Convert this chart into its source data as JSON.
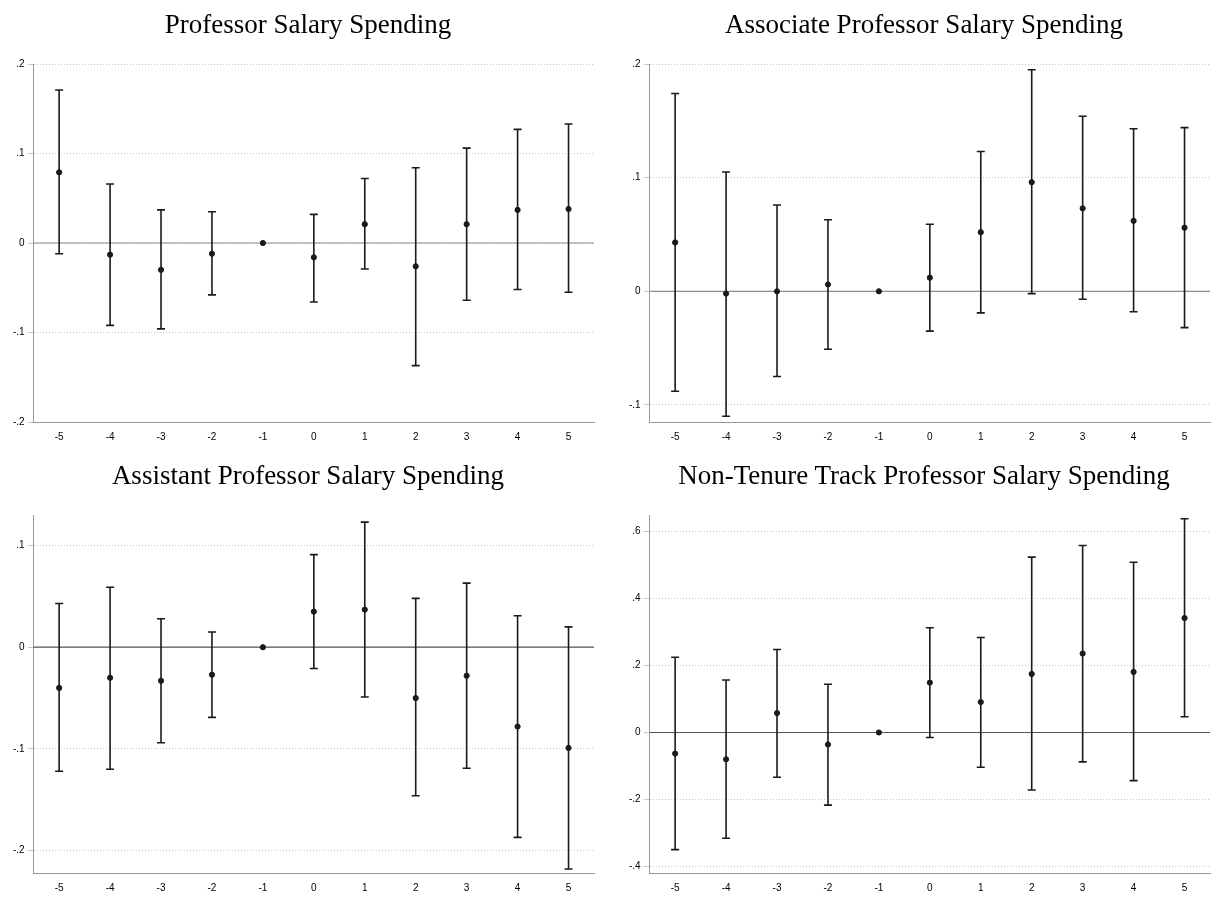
{
  "chart_data": [
    {
      "type": "scatter",
      "title": "Professor Salary Spending",
      "x": [
        -5,
        -4,
        -3,
        -2,
        -1,
        0,
        1,
        2,
        3,
        4,
        5
      ],
      "series": [
        {
          "color": "#1a1a1a",
          "values": [
            0.079,
            -0.013,
            -0.03,
            -0.012,
            0,
            -0.016,
            0.021,
            -0.026,
            0.021,
            0.037,
            0.038
          ],
          "errors": [
            [
              -0.012,
              0.171
            ],
            [
              -0.092,
              0.066
            ],
            [
              -0.096,
              0.037
            ],
            [
              -0.058,
              0.035
            ],
            null,
            [
              -0.066,
              0.032
            ],
            [
              -0.029,
              0.072
            ],
            [
              -0.137,
              0.084
            ],
            [
              -0.064,
              0.106
            ],
            [
              -0.052,
              0.127
            ],
            [
              -0.055,
              0.133
            ]
          ]
        }
      ],
      "xlim": [
        -5.5,
        5.5
      ],
      "xticks": [
        -5,
        -4,
        -3,
        -2,
        -1,
        0,
        1,
        2,
        3,
        4,
        5
      ],
      "ylim": [
        -0.2,
        0.2
      ],
      "yticks": [
        {
          "value": -0.2,
          "label": "-.2"
        },
        {
          "value": -0.1,
          "label": "-.1"
        },
        {
          "value": 0,
          "label": "0"
        },
        {
          "value": 0.1,
          "label": ".1"
        },
        {
          "value": 0.2,
          "label": ".2"
        }
      ],
      "grid": "y",
      "marker": "circle",
      "ref_lines": [
        {
          "axis": "y",
          "value": 0,
          "color": "#8c8c8c"
        }
      ]
    },
    {
      "type": "scatter",
      "title": "Associate Professor Salary Spending",
      "x": [
        -5,
        -4,
        -3,
        -2,
        -1,
        0,
        1,
        2,
        3,
        4,
        5
      ],
      "series": [
        {
          "color": "#1a1a1a",
          "values": [
            0.043,
            -0.002,
            0,
            0.006,
            0,
            0.012,
            0.052,
            0.096,
            0.073,
            0.062,
            0.056
          ],
          "errors": [
            [
              -0.088,
              0.174
            ],
            [
              -0.11,
              0.105
            ],
            [
              -0.075,
              0.076
            ],
            [
              -0.051,
              0.063
            ],
            null,
            [
              -0.035,
              0.059
            ],
            [
              -0.019,
              0.123
            ],
            [
              -0.002,
              0.195
            ],
            [
              -0.007,
              0.154
            ],
            [
              -0.018,
              0.143
            ],
            [
              -0.032,
              0.144
            ]
          ]
        }
      ],
      "xlim": [
        -5.5,
        5.5
      ],
      "xticks": [
        -5,
        -4,
        -3,
        -2,
        -1,
        0,
        1,
        2,
        3,
        4,
        5
      ],
      "ylim": [
        -0.115,
        0.2
      ],
      "yticks": [
        {
          "value": -0.1,
          "label": "-.1"
        },
        {
          "value": 0,
          "label": "0"
        },
        {
          "value": 0.1,
          "label": ".1"
        },
        {
          "value": 0.2,
          "label": ".2"
        }
      ],
      "grid": "y",
      "marker": "circle",
      "ref_lines": [
        {
          "axis": "y",
          "value": 0,
          "color": "#8c8c8c"
        }
      ]
    },
    {
      "type": "scatter",
      "title": "Assistant Professor Salary Spending",
      "x": [
        -5,
        -4,
        -3,
        -2,
        -1,
        0,
        1,
        2,
        3,
        4,
        5
      ],
      "series": [
        {
          "color": "#1a1a1a",
          "values": [
            -0.04,
            -0.03,
            -0.033,
            -0.027,
            0,
            0.035,
            0.037,
            -0.05,
            -0.028,
            -0.078,
            -0.099
          ],
          "errors": [
            [
              -0.122,
              0.043
            ],
            [
              -0.12,
              0.059
            ],
            [
              -0.094,
              0.028
            ],
            [
              -0.069,
              0.015
            ],
            null,
            [
              -0.021,
              0.091
            ],
            [
              -0.049,
              0.123
            ],
            [
              -0.146,
              0.048
            ],
            [
              -0.119,
              0.063
            ],
            [
              -0.187,
              0.031
            ],
            [
              -0.218,
              0.02
            ]
          ]
        }
      ],
      "xlim": [
        -5.5,
        5.5
      ],
      "xticks": [
        -5,
        -4,
        -3,
        -2,
        -1,
        0,
        1,
        2,
        3,
        4,
        5
      ],
      "ylim": [
        -0.222,
        0.13
      ],
      "yticks": [
        {
          "value": -0.2,
          "label": "-.2"
        },
        {
          "value": -0.1,
          "label": "-.1"
        },
        {
          "value": 0,
          "label": "0"
        },
        {
          "value": 0.1,
          "label": ".1"
        }
      ],
      "grid": "y",
      "marker": "circle",
      "ref_lines": [
        {
          "axis": "y",
          "value": 0,
          "color": "#555555"
        }
      ]
    },
    {
      "type": "scatter",
      "title": "Non-Tenure Track Professor Salary Spending",
      "x": [
        -5,
        -4,
        -3,
        -2,
        -1,
        0,
        1,
        2,
        3,
        4,
        5
      ],
      "series": [
        {
          "color": "#1a1a1a",
          "values": [
            -0.063,
            -0.08,
            0.058,
            -0.036,
            0,
            0.149,
            0.091,
            0.175,
            0.236,
            0.181,
            0.342
          ],
          "errors": [
            [
              -0.35,
              0.225
            ],
            [
              -0.316,
              0.157
            ],
            [
              -0.134,
              0.248
            ],
            [
              -0.217,
              0.144
            ],
            null,
            [
              -0.015,
              0.313
            ],
            [
              -0.104,
              0.284
            ],
            [
              -0.172,
              0.524
            ],
            [
              -0.088,
              0.559
            ],
            [
              -0.144,
              0.509
            ],
            [
              0.047,
              0.639
            ]
          ]
        }
      ],
      "xlim": [
        -5.5,
        5.5
      ],
      "xticks": [
        -5,
        -4,
        -3,
        -2,
        -1,
        0,
        1,
        2,
        3,
        4,
        5
      ],
      "ylim": [
        -0.42,
        0.65
      ],
      "yticks": [
        {
          "value": -0.4,
          "label": "-.4"
        },
        {
          "value": -0.2,
          "label": "-.2"
        },
        {
          "value": 0,
          "label": "0"
        },
        {
          "value": 0.2,
          "label": ".2"
        },
        {
          "value": 0.4,
          "label": ".4"
        },
        {
          "value": 0.6,
          "label": ".6"
        }
      ],
      "grid": "y",
      "marker": "circle",
      "ref_lines": [
        {
          "axis": "y",
          "value": 0,
          "color": "#555555"
        }
      ]
    }
  ]
}
